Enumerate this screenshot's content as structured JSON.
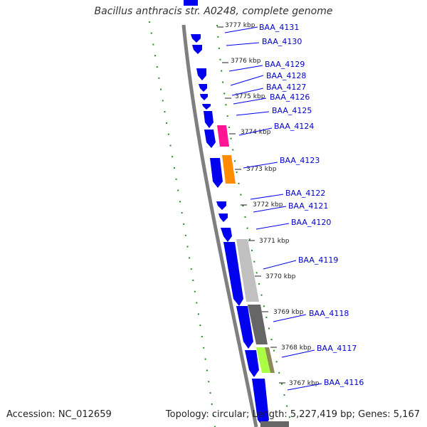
{
  "title": "Bacillus anthracis str. A0248, complete genome",
  "accession": "Accession: NC_012659",
  "topology": "Topology: circular; Length: 5,227,419 bp; Genes: 5,167",
  "colors": {
    "backbone": "#7f7f7f",
    "gene_forward": "#0000ee",
    "dotted_track": "#228b22",
    "label_line": "#0000ee",
    "feature_magenta": "#ff1493",
    "feature_orange": "#ff8c00",
    "feature_lightgray": "#c0c0c0",
    "feature_darkgray": "#666666",
    "feature_lime": "#aaff44",
    "feature_olive": "#8b8b55"
  },
  "ticks": [
    "3777 kbp",
    "3776 kbp",
    "3775 kbp",
    "3774 kbp",
    "3773 kbp",
    "3772 kbp",
    "3771 kbp",
    "3770 kbp",
    "3769 kbp",
    "3768 kbp",
    "3767 kbp"
  ],
  "genes": [
    "BAA_4131",
    "BAA_4130",
    "BAA_4129",
    "BAA_4128",
    "BAA_4127",
    "BAA_4126",
    "BAA_4125",
    "BAA_4124",
    "BAA_4123",
    "BAA_4122",
    "BAA_4121",
    "BAA_4120",
    "BAA_4119",
    "BAA_4118",
    "BAA_4117",
    "BAA_4116"
  ]
}
